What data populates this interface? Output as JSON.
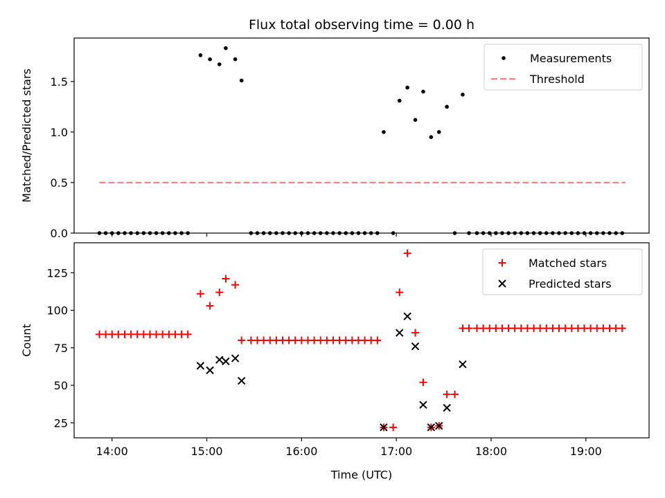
{
  "chart_data": [
    {
      "type": "scatter",
      "title": "Flux total observing time = 0.00 h",
      "xlabel": "",
      "ylabel": "Matched/Predicted stars",
      "xlim": [
        "13:36",
        "19:40"
      ],
      "ylim": [
        0,
        1.93
      ],
      "yticks": [
        0.0,
        0.5,
        1.0,
        1.5
      ],
      "ytick_labels": [
        "0.0",
        "0.5",
        "1.0",
        "1.5"
      ],
      "xticks": [
        "14:00",
        "15:00",
        "16:00",
        "17:00",
        "18:00",
        "19:00"
      ],
      "show_xtick_labels": false,
      "legend": "upper-right",
      "series": [
        {
          "name": "Measurements",
          "kind": "points",
          "color": "#000000",
          "points": [
            [
              "13:52",
              0
            ],
            [
              "13:56",
              0
            ],
            [
              "14:00",
              0
            ],
            [
              "14:04",
              0
            ],
            [
              "14:08",
              0
            ],
            [
              "14:12",
              0
            ],
            [
              "14:16",
              0
            ],
            [
              "14:20",
              0
            ],
            [
              "14:24",
              0
            ],
            [
              "14:28",
              0
            ],
            [
              "14:32",
              0
            ],
            [
              "14:36",
              0
            ],
            [
              "14:40",
              0
            ],
            [
              "14:44",
              0
            ],
            [
              "14:48",
              0
            ],
            [
              "14:56",
              1.76
            ],
            [
              "15:02",
              1.72
            ],
            [
              "15:08",
              1.67
            ],
            [
              "15:12",
              1.83
            ],
            [
              "15:18",
              1.72
            ],
            [
              "15:22",
              1.51
            ],
            [
              "15:28",
              0
            ],
            [
              "15:32",
              0
            ],
            [
              "15:36",
              0
            ],
            [
              "15:40",
              0
            ],
            [
              "15:44",
              0
            ],
            [
              "15:48",
              0
            ],
            [
              "15:52",
              0
            ],
            [
              "15:56",
              0
            ],
            [
              "16:00",
              0
            ],
            [
              "16:04",
              0
            ],
            [
              "16:08",
              0
            ],
            [
              "16:12",
              0
            ],
            [
              "16:16",
              0
            ],
            [
              "16:20",
              0
            ],
            [
              "16:24",
              0
            ],
            [
              "16:28",
              0
            ],
            [
              "16:32",
              0
            ],
            [
              "16:36",
              0
            ],
            [
              "16:40",
              0
            ],
            [
              "16:44",
              0
            ],
            [
              "16:48",
              0
            ],
            [
              "16:52",
              1.0
            ],
            [
              "16:58",
              0
            ],
            [
              "17:02",
              1.31
            ],
            [
              "17:07",
              1.44
            ],
            [
              "17:12",
              1.12
            ],
            [
              "17:17",
              1.4
            ],
            [
              "17:22",
              0.95
            ],
            [
              "17:27",
              1.0
            ],
            [
              "17:32",
              1.25
            ],
            [
              "17:37",
              0
            ],
            [
              "17:42",
              1.37
            ],
            [
              "17:46",
              0
            ],
            [
              "17:51",
              0
            ],
            [
              "17:55",
              0
            ],
            [
              "17:59",
              0
            ],
            [
              "18:03",
              0
            ],
            [
              "18:07",
              0
            ],
            [
              "18:11",
              0
            ],
            [
              "18:15",
              0
            ],
            [
              "18:19",
              0
            ],
            [
              "18:23",
              0
            ],
            [
              "18:27",
              0
            ],
            [
              "18:31",
              0
            ],
            [
              "18:35",
              0
            ],
            [
              "18:39",
              0
            ],
            [
              "18:43",
              0
            ],
            [
              "18:47",
              0
            ],
            [
              "18:51",
              0
            ],
            [
              "18:55",
              0
            ],
            [
              "18:59",
              0
            ],
            [
              "19:03",
              0
            ],
            [
              "19:07",
              0
            ],
            [
              "19:11",
              0
            ],
            [
              "19:15",
              0
            ],
            [
              "19:19",
              0
            ],
            [
              "19:23",
              0
            ]
          ]
        },
        {
          "name": "Threshold",
          "kind": "dashed-line",
          "color": "#ff7f7f",
          "points": [
            [
              "13:52",
              0.5
            ],
            [
              "19:25",
              0.5
            ]
          ]
        }
      ]
    },
    {
      "type": "scatter",
      "title": "",
      "xlabel": "Time (UTC)",
      "ylabel": "Count",
      "xlim": [
        "13:36",
        "19:40"
      ],
      "ylim": [
        15,
        145
      ],
      "yticks": [
        25,
        50,
        75,
        100,
        125
      ],
      "ytick_labels": [
        "25",
        "50",
        "75",
        "100",
        "125"
      ],
      "xticks": [
        "14:00",
        "15:00",
        "16:00",
        "17:00",
        "18:00",
        "19:00"
      ],
      "xtick_labels": [
        "14:00",
        "15:00",
        "16:00",
        "17:00",
        "18:00",
        "19:00"
      ],
      "show_xtick_labels": true,
      "legend": "upper-right",
      "series": [
        {
          "name": "Matched stars",
          "kind": "plus",
          "color": "#ff0000",
          "points": [
            [
              "13:52",
              84
            ],
            [
              "13:56",
              84
            ],
            [
              "14:00",
              84
            ],
            [
              "14:04",
              84
            ],
            [
              "14:08",
              84
            ],
            [
              "14:12",
              84
            ],
            [
              "14:16",
              84
            ],
            [
              "14:20",
              84
            ],
            [
              "14:24",
              84
            ],
            [
              "14:28",
              84
            ],
            [
              "14:32",
              84
            ],
            [
              "14:36",
              84
            ],
            [
              "14:40",
              84
            ],
            [
              "14:44",
              84
            ],
            [
              "14:48",
              84
            ],
            [
              "14:56",
              111
            ],
            [
              "15:02",
              103
            ],
            [
              "15:08",
              112
            ],
            [
              "15:12",
              121
            ],
            [
              "15:18",
              117
            ],
            [
              "15:22",
              80
            ],
            [
              "15:28",
              80
            ],
            [
              "15:32",
              80
            ],
            [
              "15:36",
              80
            ],
            [
              "15:40",
              80
            ],
            [
              "15:44",
              80
            ],
            [
              "15:48",
              80
            ],
            [
              "15:52",
              80
            ],
            [
              "15:56",
              80
            ],
            [
              "16:00",
              80
            ],
            [
              "16:04",
              80
            ],
            [
              "16:08",
              80
            ],
            [
              "16:12",
              80
            ],
            [
              "16:16",
              80
            ],
            [
              "16:20",
              80
            ],
            [
              "16:24",
              80
            ],
            [
              "16:28",
              80
            ],
            [
              "16:32",
              80
            ],
            [
              "16:36",
              80
            ],
            [
              "16:40",
              80
            ],
            [
              "16:44",
              80
            ],
            [
              "16:48",
              80
            ],
            [
              "16:52",
              22
            ],
            [
              "16:58",
              22
            ],
            [
              "17:02",
              112
            ],
            [
              "17:07",
              138
            ],
            [
              "17:12",
              85
            ],
            [
              "17:17",
              52
            ],
            [
              "17:22",
              22
            ],
            [
              "17:27",
              23
            ],
            [
              "17:32",
              44
            ],
            [
              "17:37",
              44
            ],
            [
              "17:42",
              88
            ],
            [
              "17:46",
              88
            ],
            [
              "17:51",
              88
            ],
            [
              "17:55",
              88
            ],
            [
              "17:59",
              88
            ],
            [
              "18:03",
              88
            ],
            [
              "18:07",
              88
            ],
            [
              "18:11",
              88
            ],
            [
              "18:15",
              88
            ],
            [
              "18:19",
              88
            ],
            [
              "18:23",
              88
            ],
            [
              "18:27",
              88
            ],
            [
              "18:31",
              88
            ],
            [
              "18:35",
              88
            ],
            [
              "18:39",
              88
            ],
            [
              "18:43",
              88
            ],
            [
              "18:47",
              88
            ],
            [
              "18:51",
              88
            ],
            [
              "18:55",
              88
            ],
            [
              "18:59",
              88
            ],
            [
              "19:03",
              88
            ],
            [
              "19:07",
              88
            ],
            [
              "19:11",
              88
            ],
            [
              "19:15",
              88
            ],
            [
              "19:19",
              88
            ],
            [
              "19:23",
              88
            ]
          ]
        },
        {
          "name": "Predicted stars",
          "kind": "x",
          "color": "#000000",
          "points": [
            [
              "14:56",
              63
            ],
            [
              "15:02",
              60
            ],
            [
              "15:08",
              67
            ],
            [
              "15:12",
              66
            ],
            [
              "15:18",
              68
            ],
            [
              "15:22",
              53
            ],
            [
              "16:52",
              22
            ],
            [
              "17:02",
              85
            ],
            [
              "17:07",
              96
            ],
            [
              "17:12",
              76
            ],
            [
              "17:17",
              37
            ],
            [
              "17:22",
              22
            ],
            [
              "17:27",
              23
            ],
            [
              "17:32",
              35
            ],
            [
              "17:42",
              64
            ]
          ]
        }
      ]
    }
  ]
}
